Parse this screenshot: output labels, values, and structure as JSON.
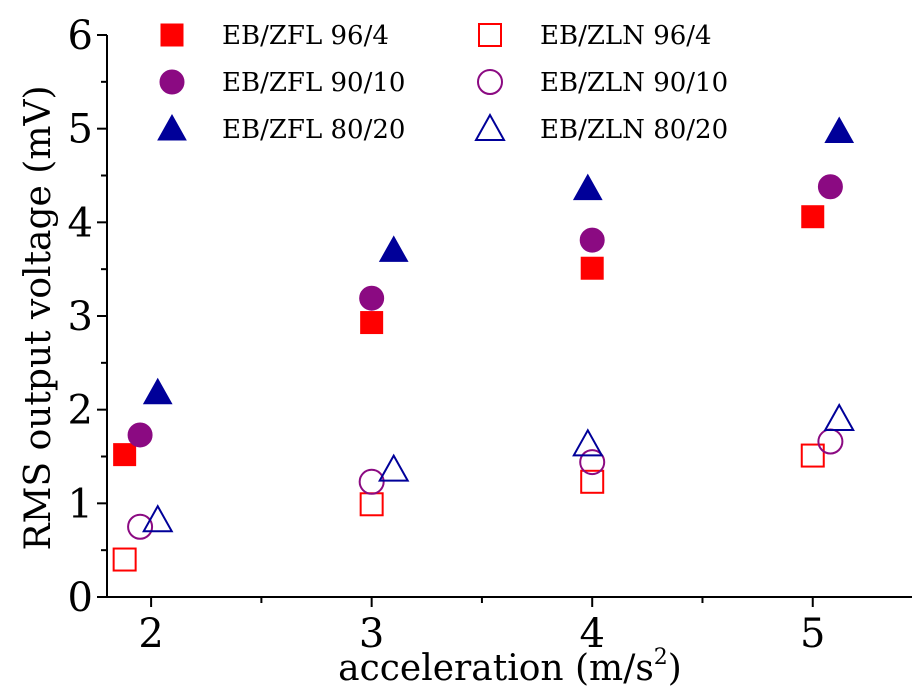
{
  "chart_data": {
    "type": "scatter",
    "xlabel": "acceleration (m/s",
    "xlabel_sup": "2",
    "xlabel_close": ")",
    "ylabel": "RMS output voltage (mV)",
    "xlim": [
      1.8,
      5.45
    ],
    "ylim": [
      0,
      6
    ],
    "xticks": [
      2,
      3,
      4,
      5
    ],
    "xtick_labels": [
      "2",
      "3",
      "4",
      "5"
    ],
    "yticks": [
      0,
      1,
      2,
      3,
      4,
      5,
      6
    ],
    "ytick_labels": [
      "0",
      "1",
      "2",
      "3",
      "4",
      "5",
      "6"
    ],
    "legend_position": "top",
    "grid": false,
    "series": [
      {
        "name": "EB/ZFL 96/4",
        "marker": "square",
        "filled": true,
        "color": "#ff0000",
        "points": [
          [
            1.88,
            1.52
          ],
          [
            3.0,
            2.93
          ],
          [
            4.0,
            3.51
          ],
          [
            5.0,
            4.06
          ]
        ]
      },
      {
        "name": "EB/ZFL 90/10",
        "marker": "circle",
        "filled": true,
        "color": "#8b0a82",
        "points": [
          [
            1.95,
            1.73
          ],
          [
            3.0,
            3.19
          ],
          [
            4.0,
            3.81
          ],
          [
            5.08,
            4.38
          ]
        ]
      },
      {
        "name": "EB/ZFL 80/20",
        "marker": "triangle",
        "filled": true,
        "color": "#000099",
        "points": [
          [
            2.03,
            2.18
          ],
          [
            3.1,
            3.7
          ],
          [
            3.98,
            4.36
          ],
          [
            5.12,
            4.97
          ]
        ]
      },
      {
        "name": "EB/ZLN 96/4",
        "marker": "square",
        "filled": false,
        "color": "#ff0000",
        "points": [
          [
            1.88,
            0.4
          ],
          [
            3.0,
            0.99
          ],
          [
            4.0,
            1.23
          ],
          [
            5.0,
            1.51
          ]
        ]
      },
      {
        "name": "EB/ZLN 90/10",
        "marker": "circle",
        "filled": false,
        "color": "#8b0a82",
        "points": [
          [
            1.95,
            0.75
          ],
          [
            3.0,
            1.23
          ],
          [
            4.0,
            1.44
          ],
          [
            5.08,
            1.66
          ]
        ]
      },
      {
        "name": "EB/ZLN 80/20",
        "marker": "triangle",
        "filled": false,
        "color": "#000099",
        "points": [
          [
            2.03,
            0.82
          ],
          [
            3.1,
            1.36
          ],
          [
            3.98,
            1.63
          ],
          [
            5.12,
            1.9
          ]
        ]
      }
    ]
  }
}
